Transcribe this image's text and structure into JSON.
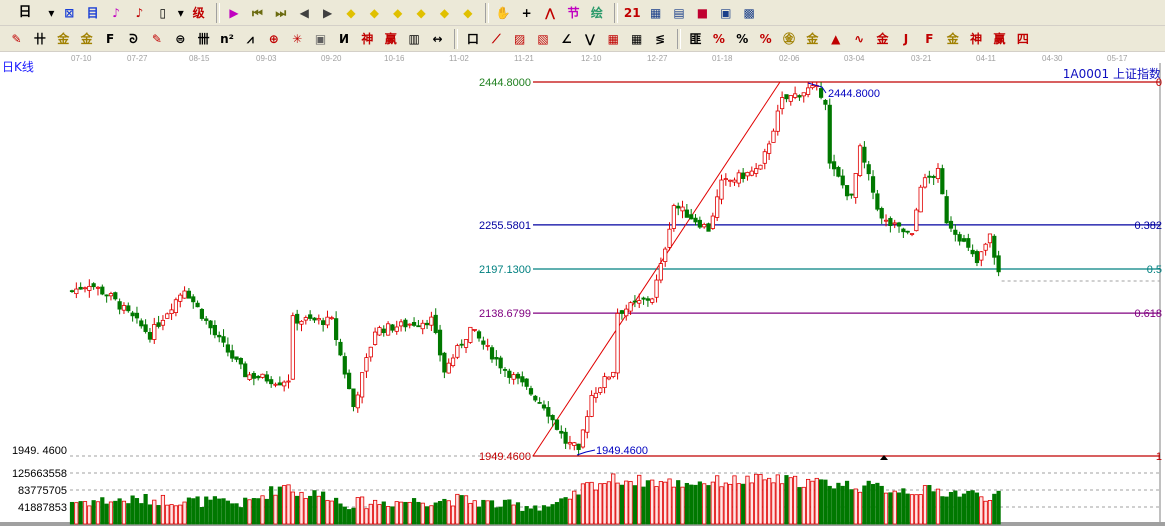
{
  "toolbar1": {
    "period_button": "日",
    "icons": [
      {
        "name": "period-dropdown-icon",
        "glyph": "▾",
        "color": "#000"
      },
      {
        "name": "multi-window-icon",
        "glyph": "⊠",
        "color": "#1a3fd6"
      },
      {
        "name": "info-icon",
        "glyph": "目",
        "color": "#1a3fd6"
      },
      {
        "name": "indicator-3-icon",
        "glyph": "♪",
        "color": "#c000c0"
      },
      {
        "name": "indicator-9-icon",
        "glyph": "♪",
        "color": "#c00000"
      },
      {
        "name": "candle-type-icon",
        "glyph": "▯",
        "color": "#000"
      },
      {
        "name": "candle-dropdown-icon",
        "glyph": "▾",
        "color": "#000"
      },
      {
        "name": "exclude-icon",
        "glyph": "级",
        "color": "#c00000"
      },
      {
        "name": "flag-icon",
        "glyph": "▶",
        "color": "#c000c0"
      },
      {
        "name": "first-icon",
        "glyph": "⏮",
        "color": "#6b6b10"
      },
      {
        "name": "last-icon",
        "glyph": "⏭",
        "color": "#6b6b10"
      },
      {
        "name": "prev-icon",
        "glyph": "◀",
        "color": "#404040"
      },
      {
        "name": "next-icon",
        "glyph": "▶",
        "color": "#404040"
      },
      {
        "name": "shift-left-icon",
        "glyph": "◆",
        "color": "#e0c000"
      },
      {
        "name": "shift-right-icon",
        "glyph": "◆",
        "color": "#e0c000"
      },
      {
        "name": "zoom-in-icon",
        "glyph": "◆",
        "color": "#e0c000"
      },
      {
        "name": "zoom-out-icon",
        "glyph": "◆",
        "color": "#e0c000"
      },
      {
        "name": "expand-icon",
        "glyph": "◆",
        "color": "#e0c000"
      },
      {
        "name": "fit-icon",
        "glyph": "◆",
        "color": "#e0c000"
      },
      {
        "name": "hand-icon",
        "glyph": "✋",
        "color": "#000"
      },
      {
        "name": "crosshair-icon",
        "glyph": "+",
        "color": "#000"
      },
      {
        "name": "line-chart-icon",
        "glyph": "⋀",
        "color": "#c00000"
      },
      {
        "name": "section-icon",
        "glyph": "节",
        "color": "#c000c0"
      },
      {
        "name": "globe-icon",
        "glyph": "绘",
        "color": "#2a9a6a"
      },
      {
        "name": "calendar-icon",
        "glyph": "21",
        "color": "#c00000"
      },
      {
        "name": "calculator-icon",
        "glyph": "▦",
        "color": "#1a3f8a"
      },
      {
        "name": "notes-icon",
        "glyph": "▤",
        "color": "#1a3f8a"
      },
      {
        "name": "save-icon",
        "glyph": "■",
        "color": "#c00030"
      },
      {
        "name": "network-icon",
        "glyph": "▣",
        "color": "#1a3f8a"
      },
      {
        "name": "print-icon",
        "glyph": "▩",
        "color": "#1a3f8a"
      }
    ]
  },
  "toolbar2": {
    "icons": [
      {
        "name": "pen-icon",
        "glyph": "✎",
        "color": "#c00000"
      },
      {
        "name": "parallel-lines-icon",
        "glyph": "卄",
        "color": "#000"
      },
      {
        "name": "gold-ratio-icon",
        "glyph": "金",
        "color": "#a08000"
      },
      {
        "name": "gold-ratio-2-icon",
        "glyph": "金",
        "color": "#a08000"
      },
      {
        "name": "fibonacci-icon",
        "glyph": "F",
        "color": "#000"
      },
      {
        "name": "spiral-icon",
        "glyph": "ᘐ",
        "color": "#000"
      },
      {
        "name": "eraser-icon",
        "glyph": "✎",
        "color": "#c00000"
      },
      {
        "name": "circle-icon",
        "glyph": "⊜",
        "color": "#000"
      },
      {
        "name": "grid-lines-icon",
        "glyph": "卌",
        "color": "#000"
      },
      {
        "name": "n-square-icon",
        "glyph": "n²",
        "color": "#000"
      },
      {
        "name": "angle-icon",
        "glyph": "⩘",
        "color": "#000"
      },
      {
        "name": "target-icon",
        "glyph": "⊕",
        "color": "#c00000"
      },
      {
        "name": "star-icon",
        "glyph": "✳",
        "color": "#c00000"
      },
      {
        "name": "box-icon",
        "glyph": "▣",
        "color": "#606060"
      },
      {
        "name": "wave-icon",
        "glyph": "И",
        "color": "#000"
      },
      {
        "name": "god-icon",
        "glyph": "神",
        "color": "#c00000"
      },
      {
        "name": "win-icon",
        "glyph": "赢",
        "color": "#c00000"
      },
      {
        "name": "ruler-icon",
        "glyph": "▥",
        "color": "#000"
      },
      {
        "name": "measure-icon",
        "glyph": "↔",
        "color": "#000"
      },
      {
        "name": "rect-icon",
        "glyph": "口",
        "color": "#000"
      },
      {
        "name": "fan-icon",
        "glyph": "⟋",
        "color": "#c00000"
      },
      {
        "name": "square-fan-icon",
        "glyph": "▨",
        "color": "#c00000"
      },
      {
        "name": "square-fan-2-icon",
        "glyph": "▧",
        "color": "#c00000"
      },
      {
        "name": "gann-fan-icon",
        "glyph": "∠",
        "color": "#000"
      },
      {
        "name": "zigzag-icon",
        "glyph": "⋁",
        "color": "#000"
      },
      {
        "name": "grid-icon",
        "glyph": "▦",
        "color": "#c00000"
      },
      {
        "name": "grid-2-icon",
        "glyph": "▦",
        "color": "#000"
      },
      {
        "name": "speed-lines-icon",
        "glyph": "≶",
        "color": "#000"
      },
      {
        "name": "period-lines-icon",
        "glyph": "匪",
        "color": "#000"
      },
      {
        "name": "percent-line-icon",
        "glyph": "%",
        "color": "#c00000"
      },
      {
        "name": "percent-icon",
        "glyph": "%",
        "color": "#000"
      },
      {
        "name": "percent-band-icon",
        "glyph": "%",
        "color": "#c00000"
      },
      {
        "name": "gold-circle-icon",
        "glyph": "㊎",
        "color": "#a08000"
      },
      {
        "name": "gold-band-icon",
        "glyph": "金",
        "color": "#a08000"
      },
      {
        "name": "marker-icon",
        "glyph": "▲",
        "color": "#c00000"
      },
      {
        "name": "sine-icon",
        "glyph": "∿",
        "color": "#c00000"
      },
      {
        "name": "gold-line-icon",
        "glyph": "金",
        "color": "#c00000"
      },
      {
        "name": "j-angle-icon",
        "glyph": "J",
        "color": "#c00000"
      },
      {
        "name": "f-angle-icon",
        "glyph": "F",
        "color": "#c00000"
      },
      {
        "name": "gold-angle-icon",
        "glyph": "金",
        "color": "#a08000"
      },
      {
        "name": "god-angle-icon",
        "glyph": "神",
        "color": "#c00000"
      },
      {
        "name": "win-angle-icon",
        "glyph": "赢",
        "color": "#c00000"
      },
      {
        "name": "four-angle-icon",
        "glyph": "四",
        "color": "#c00000"
      }
    ]
  },
  "chart_header": {
    "period_label": "日K线",
    "symbol": "1A0001  上证指数"
  },
  "chart_data": {
    "type": "candlestick",
    "x_ticks": [
      "07-10",
      "07-27",
      "08-15",
      "09-03",
      "09-20",
      "10-16",
      "11-02",
      "11-21",
      "12-10",
      "12-27",
      "01-18",
      "02-06",
      "03-04",
      "03-21",
      "04-11",
      "04-30",
      "05-17"
    ],
    "ylim": [
      1949.46,
      2444.8
    ],
    "close_path": [
      [
        0,
        2168
      ],
      [
        4,
        2178
      ],
      [
        9,
        2160
      ],
      [
        18,
        2110
      ],
      [
        26,
        2172
      ],
      [
        33,
        2110
      ],
      [
        40,
        2058
      ],
      [
        48,
        2048
      ],
      [
        50,
        2052
      ],
      [
        51,
        2130
      ],
      [
        60,
        2128
      ],
      [
        65,
        2015
      ],
      [
        70,
        2116
      ],
      [
        83,
        2130
      ],
      [
        86,
        2062
      ],
      [
        92,
        2118
      ],
      [
        99,
        2070
      ],
      [
        109,
        2017
      ],
      [
        114,
        1968
      ],
      [
        117,
        1958
      ],
      [
        120,
        2030
      ],
      [
        125,
        2063
      ],
      [
        126,
        2140
      ],
      [
        134,
        2160
      ],
      [
        136,
        2200
      ],
      [
        139,
        2282
      ],
      [
        147,
        2250
      ],
      [
        150,
        2310
      ],
      [
        159,
        2330
      ],
      [
        164,
        2420
      ],
      [
        168,
        2430
      ],
      [
        172,
        2440
      ],
      [
        174,
        2420
      ],
      [
        175,
        2335
      ],
      [
        180,
        2290
      ],
      [
        182,
        2355
      ],
      [
        187,
        2262
      ],
      [
        191,
        2250
      ],
      [
        194,
        2240
      ],
      [
        196,
        2310
      ],
      [
        200,
        2325
      ],
      [
        202,
        2262
      ],
      [
        205,
        2240
      ],
      [
        209,
        2205
      ],
      [
        212,
        2240
      ],
      [
        214,
        2192
      ]
    ],
    "volume_path": [
      [
        0,
        55
      ],
      [
        20,
        60
      ],
      [
        40,
        50
      ],
      [
        50,
        100
      ],
      [
        52,
        75
      ],
      [
        60,
        70
      ],
      [
        62,
        50
      ],
      [
        90,
        60
      ],
      [
        100,
        45
      ],
      [
        110,
        45
      ],
      [
        115,
        55
      ],
      [
        118,
        90
      ],
      [
        125,
        110
      ],
      [
        140,
        100
      ],
      [
        160,
        110
      ],
      [
        175,
        100
      ],
      [
        190,
        85
      ],
      [
        200,
        80
      ],
      [
        214,
        68
      ]
    ],
    "fibonacci": [
      {
        "price": "2444.8000",
        "ratio": "0",
        "value": 2444.8,
        "color": "#c00000",
        "label_color": "#208020"
      },
      {
        "price": "2255.5801",
        "ratio": "0.382",
        "value": 2255.5801,
        "color": "#0000a0",
        "label_color": "#0000a0"
      },
      {
        "price": "2197.1300",
        "ratio": "0.5",
        "value": 2197.13,
        "color": "#008080",
        "label_color": "#008080"
      },
      {
        "price": "2138.6799",
        "ratio": "0.618",
        "value": 2138.6799,
        "color": "#800080",
        "label_color": "#800080"
      },
      {
        "price": "1949.4600",
        "ratio": "1",
        "value": 1949.46,
        "color": "#c00000",
        "label_color": "#c00000"
      }
    ],
    "high_annotation": "2444.8000",
    "low_annotation": "1949.4600",
    "left_axis": {
      "price_label": "1949. 4600",
      "volume_ticks": [
        "125663558",
        "83775705",
        "41887853"
      ],
      "volume_values": [
        125663558,
        83775705,
        41887853
      ]
    },
    "colors": {
      "up": "#e00000",
      "up_fill": "#ffe4e4",
      "down": "#007800"
    }
  }
}
